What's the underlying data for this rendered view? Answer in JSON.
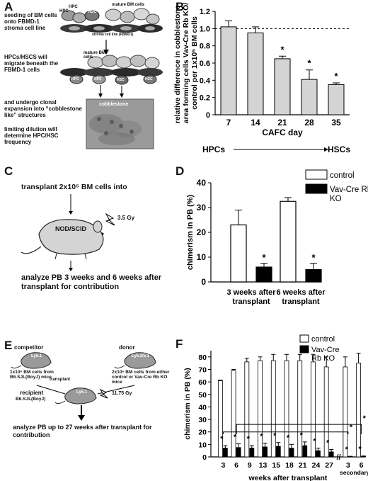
{
  "figure": {
    "panels": {
      "A": {
        "label": "A",
        "step1": "seeding of BM cells onto FBMD-1 stroma cell line",
        "cell_labels": {
          "hpc1": "HPC",
          "hpc2": "HPC",
          "hsc": "HSC",
          "mature": "mature BM cells",
          "stroma": "stroma cell line (FBMD1)"
        },
        "step2": "HPCs/HSCS will migrate beneath the FBMD-1 cells",
        "cell_labels2": {
          "mature": "mature BM cells",
          "hpc": "HPC",
          "hpc_b": "HPC",
          "hsc": "HSC",
          "hsc_b": "HSC"
        },
        "step3": "and undergo clonal expansion into “cobblestone like” structures",
        "cobblestone": "cobblestone",
        "step4": "limiting dilution will determine HPC/HSC frequency"
      },
      "C": {
        "label": "C",
        "line1": "transplant 2x10⁵ BM cells into",
        "mouse": "NOD/SCID",
        "dose": "3.5 Gy",
        "line2": "analyze PB 3 weeks and 6 weeks after transplant for contribution"
      },
      "E": {
        "label": "E",
        "competitor": "competitor",
        "donor": "donor",
        "ly51": "Ly5.1",
        "ly52": "Ly5.2/5.1",
        "ly51b": "Ly5.1",
        "comp_text": "1x10⁶ BM cells from B6.SJL(BoyJ) mice",
        "donor_text": "2x10⁶ BM cells from either control or Vav-Cre Rb KO mice",
        "transplant": "transplant",
        "recipient": "recipient",
        "recipient_strain": "B6.SJL(BoyJ)",
        "dose": "11.75 Gy",
        "analyze": "analyze PB up to 27 weeks after transplant for contribution"
      }
    }
  },
  "chart_data": [
    {
      "panel": "B",
      "type": "bar",
      "ylabel": "relative difference in cobblestone-area forming cells Vav-Cre Rb KO/ control per 1x10⁵ BM cells",
      "xlabel": "CAFC day",
      "categories": [
        "7",
        "14",
        "21",
        "28",
        "35"
      ],
      "values": [
        1.02,
        0.95,
        0.65,
        0.41,
        0.35
      ],
      "errors": [
        0.07,
        0.07,
        0.03,
        0.11,
        0.02
      ],
      "significant": [
        "",
        "",
        "*",
        "*",
        "*"
      ],
      "yticks": [
        "0",
        "0.2",
        "0.4",
        "0.6",
        "0.8",
        "1.0",
        "1.2"
      ],
      "ylim": [
        0,
        1.2
      ],
      "reference_line": 1.0,
      "bar_color": "#d4d4d4",
      "arrow_left": "HPCs",
      "arrow_right": "HSCs"
    },
    {
      "panel": "D",
      "type": "bar",
      "ylabel": "chimerism in PB (%)",
      "categories": [
        "3 weeks after transplant",
        "6 weeks after transplant"
      ],
      "series": [
        {
          "name": "control",
          "values": [
            23,
            32.5
          ],
          "errors": [
            6,
            1.5
          ],
          "color": "#ffffff"
        },
        {
          "name": "Vav-Cre Rb KO",
          "values": [
            6,
            5
          ],
          "errors": [
            1.5,
            2.5
          ],
          "color": "#000000"
        }
      ],
      "significant": [
        "*",
        "*"
      ],
      "yticks": [
        "0",
        "10",
        "20",
        "30",
        "40"
      ],
      "ylim": [
        0,
        40
      ]
    },
    {
      "panel": "F",
      "type": "bar",
      "ylabel": "chimerism in PB (%)",
      "xlabel": "weeks after transplant",
      "categories": [
        "3",
        "6",
        "9",
        "13",
        "15",
        "18",
        "21",
        "24",
        "27",
        "3",
        "6"
      ],
      "secondary_label": "secondary",
      "series": [
        {
          "name": "control",
          "values": [
            61,
            69,
            76,
            77,
            77,
            77,
            77,
            76,
            72,
            72,
            75
          ],
          "errors": [
            0.5,
            1,
            3,
            3,
            5,
            5,
            5,
            6,
            8,
            8,
            8
          ],
          "color": "#ffffff"
        },
        {
          "name": "Vav-Cre Rb KO",
          "values": [
            7,
            7.5,
            7,
            8,
            8.5,
            7,
            9,
            5,
            4,
            0.3,
            0.5
          ],
          "errors": [
            2,
            3,
            2,
            3,
            3,
            3,
            3,
            2,
            2,
            0.2,
            0.3
          ],
          "color": "#000000"
        }
      ],
      "significant": [
        "*",
        "*",
        "*",
        "*",
        "*",
        "*",
        "*",
        "*",
        "*",
        "*",
        "*"
      ],
      "yticks": [
        "0",
        "10",
        "20",
        "30",
        "40",
        "50",
        "60",
        "70",
        "80"
      ],
      "ylim": [
        0,
        85
      ],
      "axis_break": "//"
    }
  ]
}
